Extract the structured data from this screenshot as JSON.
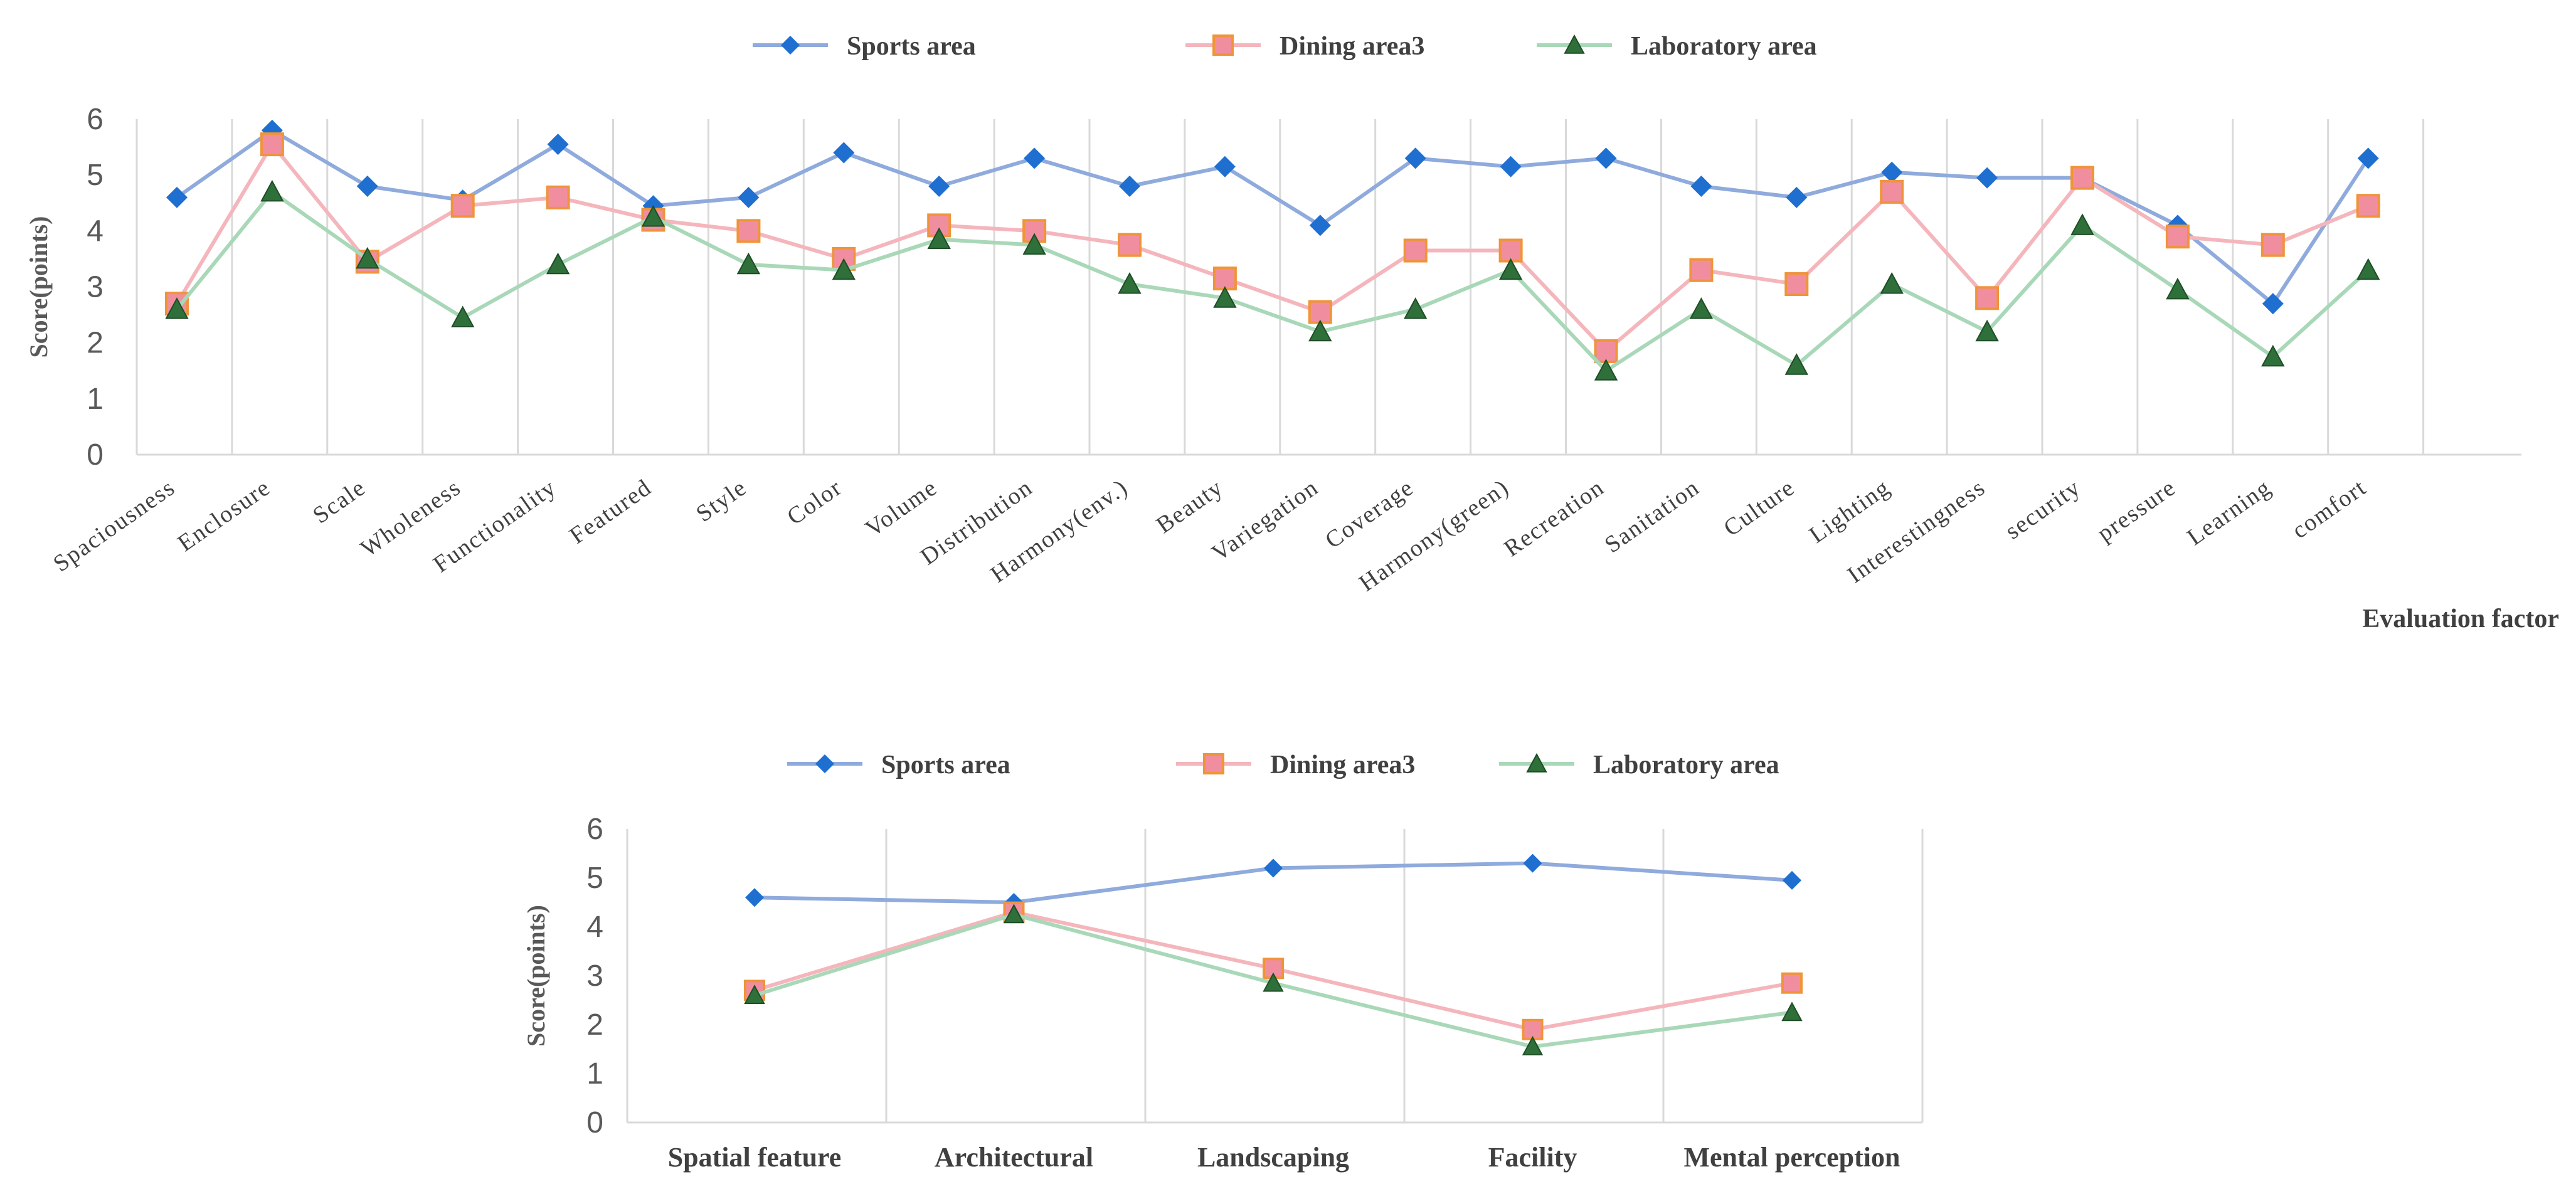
{
  "chart_data": [
    {
      "type": "line",
      "xlabel": "Evaluation factor",
      "ylabel": "Score(points)",
      "ylim": [
        0,
        6
      ],
      "yticks": [
        "0",
        "1",
        "2",
        "3",
        "4",
        "5",
        "6"
      ],
      "grid": "vertical",
      "legend": "top",
      "categories": [
        "Spaciousness",
        "Enclosure",
        "Scale",
        "Wholeness",
        "Functionality",
        "Featured",
        "Style",
        "Color",
        "Volume",
        "Distribution",
        "Harmony(env.)",
        "Beauty",
        "Variegation",
        "Coverage",
        "Harmony(green)",
        "Recreation",
        "Sanitation",
        "Culture",
        "Lighting",
        "Interestingness",
        "security",
        "pressure",
        "Learning",
        "comfort"
      ],
      "series": [
        {
          "name": "Sports area",
          "color": "#8FAADC",
          "marker": "diamond",
          "marker_color": "#1F6FD1",
          "values": [
            4.6,
            5.8,
            4.8,
            4.55,
            5.55,
            4.45,
            4.6,
            5.4,
            4.8,
            5.3,
            4.8,
            5.15,
            4.1,
            5.3,
            5.15,
            5.3,
            4.8,
            4.6,
            5.05,
            4.95,
            4.95,
            4.1,
            2.7,
            5.3
          ]
        },
        {
          "name": "Dining area3",
          "color": "#F4B6BC",
          "marker": "square",
          "marker_color": "#F08EA0",
          "values": [
            2.7,
            5.55,
            3.45,
            4.45,
            4.6,
            4.2,
            4.0,
            3.5,
            4.1,
            4.0,
            3.75,
            3.15,
            2.55,
            3.65,
            3.65,
            1.85,
            3.3,
            3.05,
            4.7,
            2.8,
            4.95,
            3.9,
            3.75,
            4.45
          ]
        },
        {
          "name": "Laboratory area",
          "color": "#A9D8B8",
          "marker": "triangle",
          "marker_color": "#2F6F3A",
          "values": [
            2.6,
            4.7,
            3.5,
            2.45,
            3.4,
            4.25,
            3.4,
            3.3,
            3.85,
            3.75,
            3.05,
            2.8,
            2.2,
            2.6,
            3.3,
            1.5,
            2.6,
            1.6,
            3.05,
            2.2,
            4.1,
            2.95,
            1.75,
            3.3
          ]
        }
      ]
    },
    {
      "type": "line",
      "xlabel": "",
      "ylabel": "Score(points)",
      "ylim": [
        0,
        6
      ],
      "yticks": [
        "0",
        "1",
        "2",
        "3",
        "4",
        "5",
        "6"
      ],
      "grid": "vertical",
      "legend": "top",
      "categories": [
        "Spatial feature",
        "Architectural",
        "Landscaping",
        "Facility",
        "Mental perception"
      ],
      "series": [
        {
          "name": "Sports area",
          "color": "#8FAADC",
          "marker": "diamond",
          "marker_color": "#1F6FD1",
          "values": [
            4.6,
            4.5,
            5.2,
            5.3,
            4.95
          ]
        },
        {
          "name": "Dining area3",
          "color": "#F4B6BC",
          "marker": "square",
          "marker_color": "#F08EA0",
          "values": [
            2.7,
            4.3,
            3.15,
            1.9,
            2.85
          ]
        },
        {
          "name": "Laboratory area",
          "color": "#A9D8B8",
          "marker": "triangle",
          "marker_color": "#2F6F3A",
          "values": [
            2.6,
            4.25,
            2.85,
            1.55,
            2.25
          ]
        }
      ]
    }
  ]
}
